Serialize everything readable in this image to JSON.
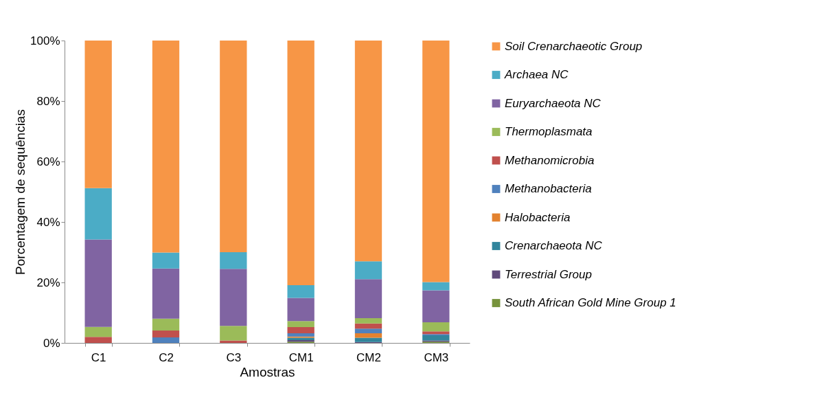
{
  "chart_data": {
    "type": "bar",
    "stacked": true,
    "xlabel": "Amostras",
    "ylabel": "Porcentagem de sequências",
    "categories": [
      "C1",
      "C2",
      "C3",
      "CM1",
      "CM2",
      "CM3"
    ],
    "ylim": [
      0,
      100
    ],
    "yticks": [
      {
        "value": 0,
        "label": "0%"
      },
      {
        "value": 20,
        "label": "20%"
      },
      {
        "value": 40,
        "label": "40%"
      },
      {
        "value": 60,
        "label": "60%"
      },
      {
        "value": 80,
        "label": "80%"
      },
      {
        "value": 100,
        "label": "100%"
      }
    ],
    "legend": "right",
    "grid": false,
    "series": [
      {
        "name": "South African Gold Mine Group 1",
        "color": "#77933c",
        "values": [
          0,
          0,
          0,
          0.4,
          0,
          0.4
        ]
      },
      {
        "name": "Terrestrial Group",
        "color": "#604a7b",
        "values": [
          0,
          0,
          0,
          0.5,
          0.3,
          0.4
        ]
      },
      {
        "name": "Crenarchaeota NC",
        "color": "#31859c",
        "values": [
          0,
          0,
          0,
          0.8,
          1.4,
          1.7
        ]
      },
      {
        "name": "Halobacteria",
        "color": "#e3822f",
        "values": [
          0,
          0,
          0,
          0.4,
          1.5,
          0
        ]
      },
      {
        "name": "Methanobacteria",
        "color": "#4f81bd",
        "values": [
          0,
          1.8,
          0,
          1.1,
          1.5,
          0.4
        ]
      },
      {
        "name": "Methanomicrobia",
        "color": "#c0504d",
        "values": [
          2.0,
          2.3,
          0.8,
          2.0,
          1.7,
          0.9
        ]
      },
      {
        "name": "Thermoplasmata",
        "color": "#9bbb59",
        "values": [
          3.3,
          3.9,
          4.8,
          2.0,
          1.8,
          3.0
        ]
      },
      {
        "name": "Euryarchaeota NC",
        "color": "#8064a2",
        "values": [
          28.9,
          16.6,
          18.9,
          7.7,
          12.9,
          10.6
        ]
      },
      {
        "name": "Archaea NC",
        "color": "#4bacc6",
        "values": [
          17.0,
          5.3,
          5.5,
          4.2,
          5.9,
          2.7
        ]
      },
      {
        "name": "Soil Crenarchaeotic Group",
        "color": "#f79646",
        "values": [
          48.8,
          70.1,
          70.0,
          80.9,
          73.0,
          79.9
        ]
      }
    ]
  }
}
